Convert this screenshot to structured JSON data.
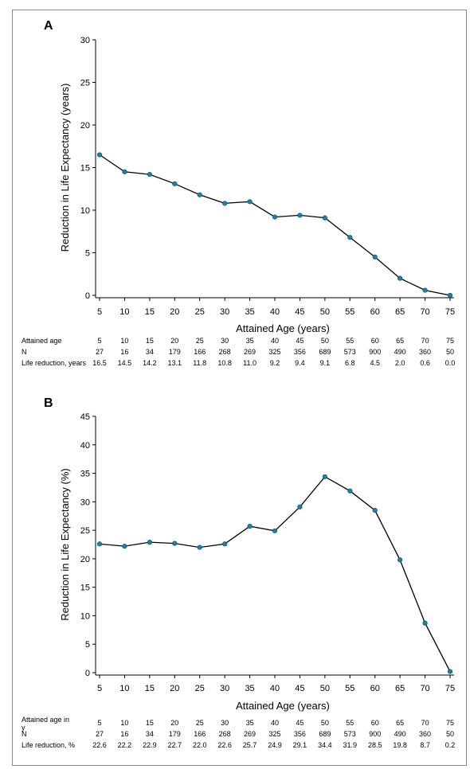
{
  "chart_data": [
    {
      "type": "line",
      "panel_label": "A",
      "xlabel": "Attained Age (years)",
      "ylabel": "Reduction in Life Expectancy (years)",
      "ylim": [
        0,
        30
      ],
      "yticks": [
        0,
        5,
        10,
        15,
        20,
        25,
        30
      ],
      "x": [
        5,
        10,
        15,
        20,
        25,
        30,
        35,
        40,
        45,
        50,
        55,
        60,
        65,
        70,
        75
      ],
      "series": [
        {
          "values": [
            16.5,
            14.5,
            14.2,
            13.1,
            11.8,
            10.8,
            11.0,
            9.2,
            9.4,
            9.1,
            6.8,
            4.5,
            2.0,
            0.6,
            0.0
          ]
        }
      ],
      "colors": {
        "line": "#000000",
        "marker": "#1f7fa6"
      },
      "grid": false,
      "table": {
        "rows": [
          {
            "label": "Attained age",
            "values": [
              "5",
              "10",
              "15",
              "20",
              "25",
              "30",
              "35",
              "40",
              "45",
              "50",
              "55",
              "60",
              "65",
              "70",
              "75"
            ]
          },
          {
            "label": "N",
            "values": [
              "27",
              "16",
              "34",
              "179",
              "166",
              "268",
              "269",
              "325",
              "356",
              "689",
              "573",
              "900",
              "490",
              "360",
              "50"
            ]
          },
          {
            "label": "Life reduction, years",
            "values": [
              "16.5",
              "14.5",
              "14.2",
              "13.1",
              "11.8",
              "10.8",
              "11.0",
              "9.2",
              "9.4",
              "9.1",
              "6.8",
              "4.5",
              "2.0",
              "0.6",
              "0.0"
            ]
          }
        ]
      }
    },
    {
      "type": "line",
      "panel_label": "B",
      "xlabel": "Attained Age (years)",
      "ylabel": "Reduction in Life Expectancy (%)",
      "ylim": [
        0,
        45
      ],
      "yticks": [
        0,
        5,
        10,
        15,
        20,
        25,
        30,
        35,
        40,
        45
      ],
      "x": [
        5,
        10,
        15,
        20,
        25,
        30,
        35,
        40,
        45,
        50,
        55,
        60,
        65,
        70,
        75
      ],
      "series": [
        {
          "values": [
            22.6,
            22.2,
            22.9,
            22.7,
            22.0,
            22.6,
            25.7,
            24.9,
            29.1,
            34.4,
            31.9,
            28.5,
            19.8,
            8.7,
            0.2
          ]
        }
      ],
      "colors": {
        "line": "#000000",
        "marker": "#1f7fa6"
      },
      "grid": false,
      "table": {
        "rows": [
          {
            "label": "Attained age in y",
            "values": [
              "5",
              "10",
              "15",
              "20",
              "25",
              "30",
              "35",
              "40",
              "45",
              "50",
              "55",
              "60",
              "65",
              "70",
              "75"
            ]
          },
          {
            "label": "N",
            "values": [
              "27",
              "16",
              "34",
              "179",
              "166",
              "268",
              "269",
              "325",
              "356",
              "689",
              "573",
              "900",
              "490",
              "360",
              "50"
            ]
          },
          {
            "label": "Life reduction, %",
            "values": [
              "22.6",
              "22.2",
              "22.9",
              "22.7",
              "22.0",
              "22.6",
              "25.7",
              "24.9",
              "29.1",
              "34.4",
              "31.9",
              "28.5",
              "19.8",
              "8.7",
              "0.2"
            ]
          }
        ]
      }
    }
  ]
}
